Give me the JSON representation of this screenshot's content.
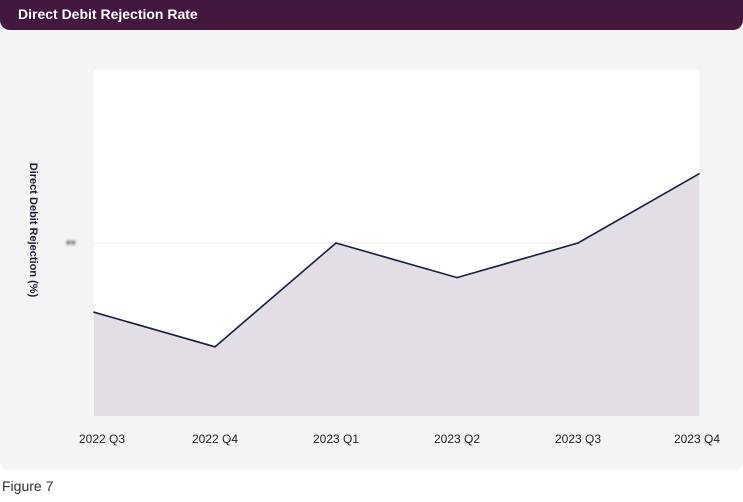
{
  "header": {
    "title": "Direct Debit Rejection Rate"
  },
  "caption": "Figure 7",
  "colors": {
    "header_bg": "#43183f",
    "line": "#16203a",
    "area_fill": "#e3dde6",
    "card_bg": "#f4f4f4"
  },
  "chart_data": {
    "type": "area",
    "title": "Direct Debit Rejection Rate",
    "xlabel": "",
    "ylabel": "Direct Debit Rejection (%)",
    "categories": [
      "2022 Q3",
      "2022 Q4",
      "2023 Q1",
      "2023 Q2",
      "2023 Q3",
      "2023 Q4"
    ],
    "values": [
      0.65,
      0.55,
      0.85,
      0.75,
      0.85,
      1.05
    ],
    "ylim": [
      0.35,
      1.35
    ],
    "y_ticks": [
      0.85
    ],
    "y_tick_labels": [
      "   "
    ],
    "grid": true,
    "legend": "none"
  }
}
